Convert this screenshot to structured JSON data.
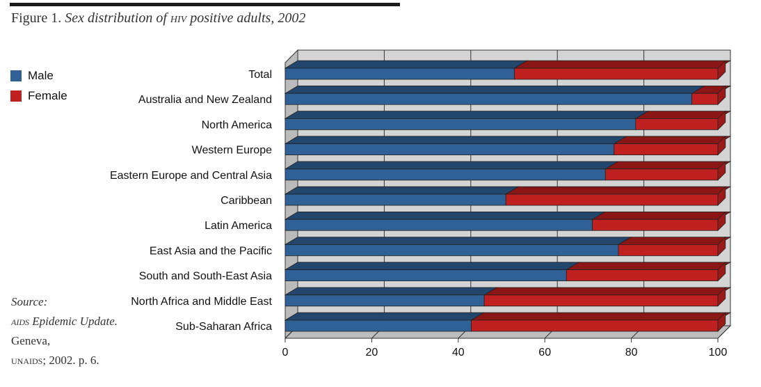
{
  "figure": {
    "number": "Figure 1.",
    "title_pre": "Sex distribution of ",
    "title_abbr": "hiv",
    "title_post": " positive adults, 2002"
  },
  "legend": {
    "male_label": "Male",
    "female_label": "Female"
  },
  "source": {
    "label": "Source:",
    "abbr1": "aids",
    "pub": " Epidemic Update.",
    "place": " Geneva,",
    "abbr2": "unaids",
    "rest": "; 2002. p. 6."
  },
  "colors": {
    "male": "#2f6196",
    "female": "#c0201f",
    "wall": "#d4d4d4",
    "floor": "#bdbdbd"
  },
  "chart_data": {
    "type": "bar",
    "orientation": "horizontal",
    "stacked": true,
    "title": "Sex distribution of HIV positive adults, 2002",
    "categories": [
      "Total",
      "Australia and New Zealand",
      "North America",
      "Western Europe",
      "Eastern Europe and Central Asia",
      "Caribbean",
      "Latin America",
      "East Asia and the Pacific",
      "South and South-East Asia",
      "North Africa and Middle East",
      "Sub-Saharan Africa"
    ],
    "series": [
      {
        "name": "Male",
        "values": [
          53,
          94,
          81,
          76,
          74,
          51,
          71,
          77,
          65,
          46,
          43
        ]
      },
      {
        "name": "Female",
        "values": [
          47,
          6,
          19,
          24,
          26,
          49,
          29,
          23,
          35,
          54,
          57
        ]
      }
    ],
    "xlim": [
      0,
      100
    ],
    "xticks": [
      0,
      20,
      40,
      60,
      80,
      100
    ],
    "grid": true,
    "legend_position": "top-left"
  }
}
